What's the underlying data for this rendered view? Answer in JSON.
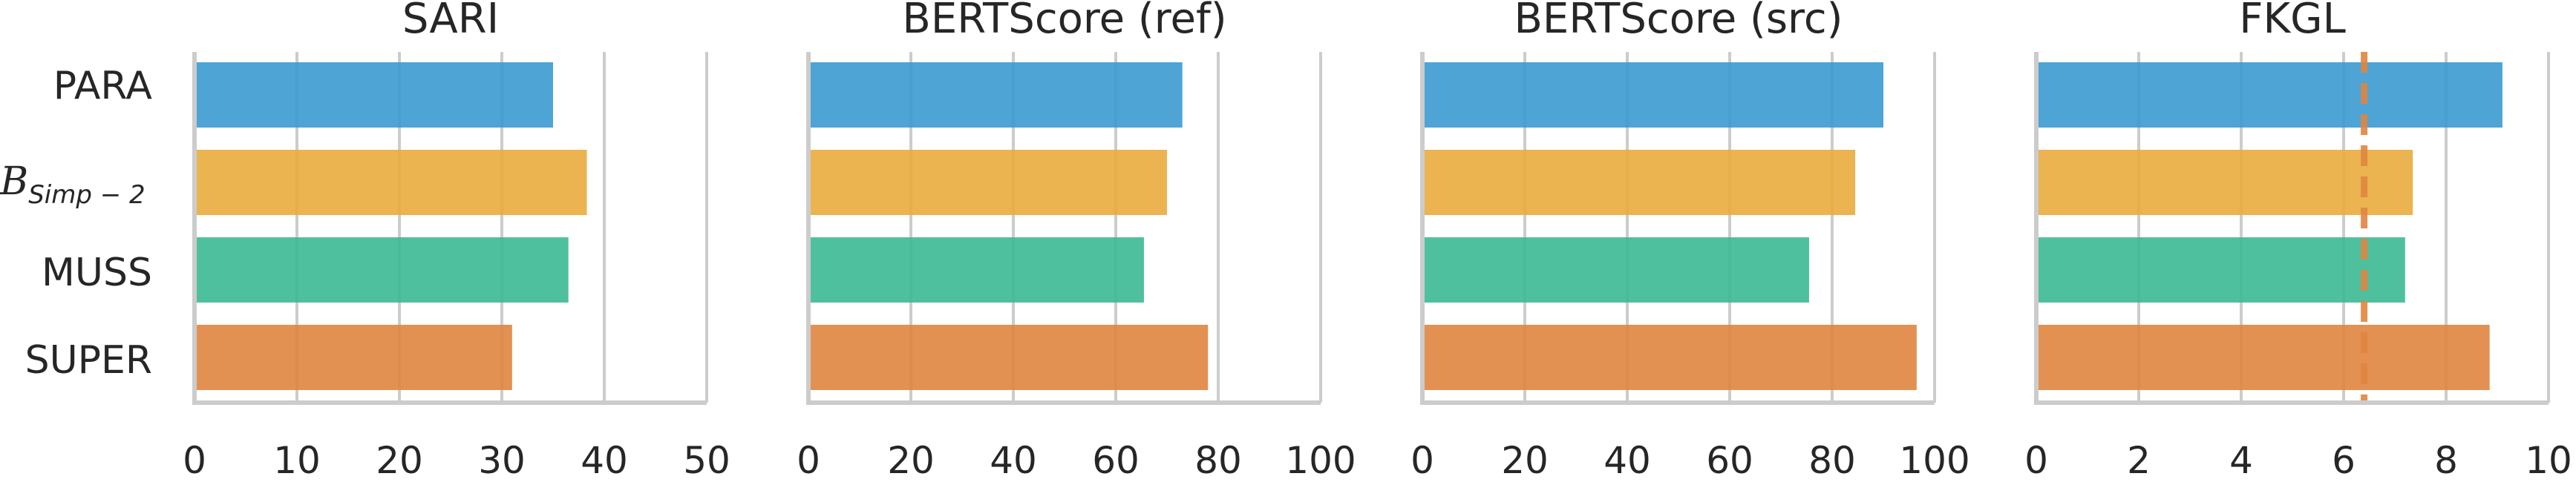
{
  "chart_data": [
    {
      "type": "bar",
      "orientation": "horizontal",
      "title": "SARI",
      "categories": [
        "PARA",
        "B_Simp-2",
        "MUSS",
        "SUPER"
      ],
      "values": [
        35,
        38.3,
        36.5,
        31
      ],
      "xlim": [
        0,
        50
      ],
      "xticks": [
        "0",
        "10",
        "20",
        "30",
        "40",
        "50"
      ],
      "colors": [
        "#3a9ad0",
        "#e9ac3e",
        "#3cb994",
        "#df8540"
      ],
      "grid": true
    },
    {
      "type": "bar",
      "orientation": "horizontal",
      "title": "BERTScore (ref)",
      "categories": [
        "PARA",
        "B_Simp-2",
        "MUSS",
        "SUPER"
      ],
      "values": [
        73,
        70,
        65.5,
        78
      ],
      "xlim": [
        0,
        100
      ],
      "xticks": [
        "0",
        "20",
        "40",
        "60",
        "80",
        "100"
      ],
      "colors": [
        "#3a9ad0",
        "#e9ac3e",
        "#3cb994",
        "#df8540"
      ],
      "grid": true
    },
    {
      "type": "bar",
      "orientation": "horizontal",
      "title": "BERTScore (src)",
      "categories": [
        "PARA",
        "B_Simp-2",
        "MUSS",
        "SUPER"
      ],
      "values": [
        90,
        84.5,
        75.5,
        96.5
      ],
      "xlim": [
        0,
        100
      ],
      "xticks": [
        "0",
        "20",
        "40",
        "60",
        "80",
        "100"
      ],
      "colors": [
        "#3a9ad0",
        "#e9ac3e",
        "#3cb994",
        "#df8540"
      ],
      "grid": true
    },
    {
      "type": "bar",
      "orientation": "horizontal",
      "title": "FKGL",
      "categories": [
        "PARA",
        "B_Simp-2",
        "MUSS",
        "SUPER"
      ],
      "values": [
        9.1,
        7.35,
        7.2,
        8.85
      ],
      "xlim": [
        0,
        10
      ],
      "xticks": [
        "0",
        "2",
        "4",
        "6",
        "8",
        "10"
      ],
      "colors": [
        "#3a9ad0",
        "#e9ac3e",
        "#3cb994",
        "#df8540"
      ],
      "grid": true,
      "reference_line": {
        "x": 6.4,
        "color": "#df8540",
        "style": "dashed"
      }
    }
  ],
  "category_labels": {
    "para": "PARA",
    "bsimp_main": "B",
    "bsimp_sub": "Simp − 2",
    "muss": "MUSS",
    "super": "SUPER"
  }
}
